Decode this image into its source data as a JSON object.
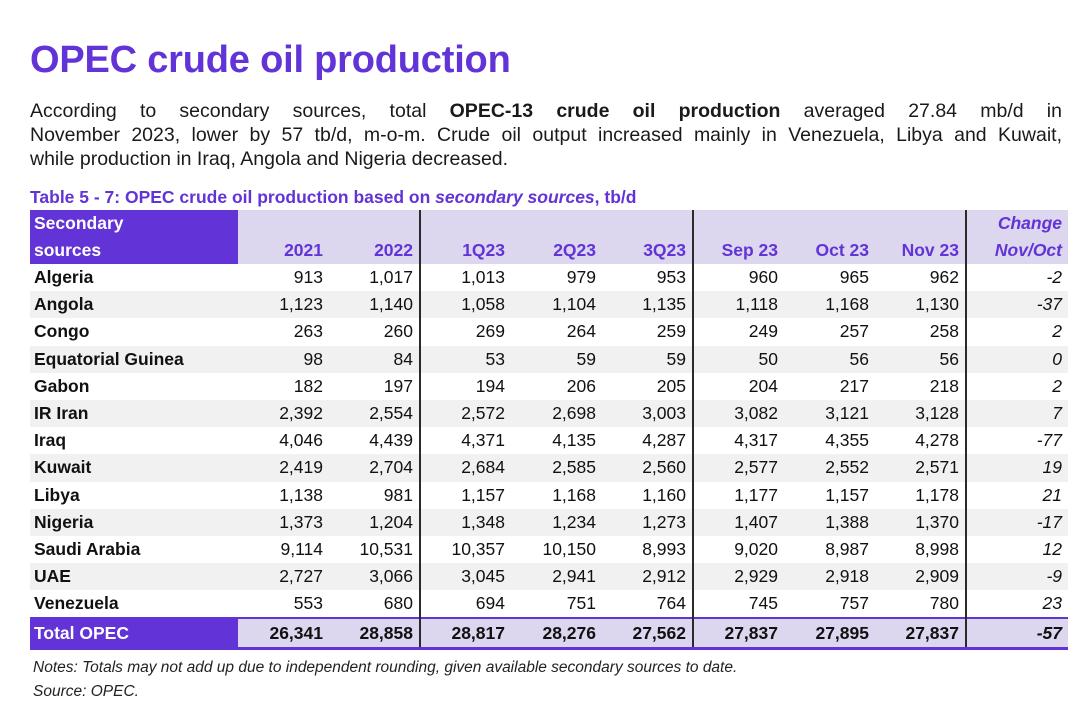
{
  "title": "OPEC crude oil production",
  "intro": {
    "line1_a": "According to secondary sources, total ",
    "line1_bold": "OPEC-13 crude oil production",
    "line1_b": " averaged 27.84 mb/d in",
    "line2": "November 2023, lower by 57 tb/d, m-o-m. Crude oil output increased mainly in Venezuela, Libya and Kuwait,",
    "line3": "while production in Iraq, Angola and Nigeria decreased."
  },
  "table_title": {
    "prefix": "Table 5 - 7: OPEC crude oil production based on ",
    "italic": "secondary sources",
    "suffix": ", tb/d"
  },
  "header": {
    "secondary_top": "Secondary",
    "secondary_bottom": "sources",
    "change_top": "Change",
    "change_bottom": "Nov/Oct",
    "columns": [
      "2021",
      "2022",
      "1Q23",
      "2Q23",
      "3Q23",
      "Sep 23",
      "Oct 23",
      "Nov 23"
    ]
  },
  "rows": [
    {
      "name": "Algeria",
      "values": [
        "913",
        "1,017",
        "1,013",
        "979",
        "953",
        "960",
        "965",
        "962"
      ],
      "change": "-2"
    },
    {
      "name": "Angola",
      "values": [
        "1,123",
        "1,140",
        "1,058",
        "1,104",
        "1,135",
        "1,118",
        "1,168",
        "1,130"
      ],
      "change": "-37"
    },
    {
      "name": "Congo",
      "values": [
        "263",
        "260",
        "269",
        "264",
        "259",
        "249",
        "257",
        "258"
      ],
      "change": "2"
    },
    {
      "name": "Equatorial Guinea",
      "values": [
        "98",
        "84",
        "53",
        "59",
        "59",
        "50",
        "56",
        "56"
      ],
      "change": "0"
    },
    {
      "name": "Gabon",
      "values": [
        "182",
        "197",
        "194",
        "206",
        "205",
        "204",
        "217",
        "218"
      ],
      "change": "2"
    },
    {
      "name": "IR Iran",
      "values": [
        "2,392",
        "2,554",
        "2,572",
        "2,698",
        "3,003",
        "3,082",
        "3,121",
        "3,128"
      ],
      "change": "7"
    },
    {
      "name": "Iraq",
      "values": [
        "4,046",
        "4,439",
        "4,371",
        "4,135",
        "4,287",
        "4,317",
        "4,355",
        "4,278"
      ],
      "change": "-77"
    },
    {
      "name": "Kuwait",
      "values": [
        "2,419",
        "2,704",
        "2,684",
        "2,585",
        "2,560",
        "2,577",
        "2,552",
        "2,571"
      ],
      "change": "19"
    },
    {
      "name": "Libya",
      "values": [
        "1,138",
        "981",
        "1,157",
        "1,168",
        "1,160",
        "1,177",
        "1,157",
        "1,178"
      ],
      "change": "21"
    },
    {
      "name": "Nigeria",
      "values": [
        "1,373",
        "1,204",
        "1,348",
        "1,234",
        "1,273",
        "1,407",
        "1,388",
        "1,370"
      ],
      "change": "-17"
    },
    {
      "name": "Saudi Arabia",
      "values": [
        "9,114",
        "10,531",
        "10,357",
        "10,150",
        "8,993",
        "9,020",
        "8,987",
        "8,998"
      ],
      "change": "12"
    },
    {
      "name": "UAE",
      "values": [
        "2,727",
        "3,066",
        "3,045",
        "2,941",
        "2,912",
        "2,929",
        "2,918",
        "2,909"
      ],
      "change": "-9"
    },
    {
      "name": "Venezuela",
      "values": [
        "553",
        "680",
        "694",
        "751",
        "764",
        "745",
        "757",
        "780"
      ],
      "change": "23"
    }
  ],
  "total": {
    "name": "Total  OPEC",
    "values": [
      "26,341",
      "28,858",
      "28,817",
      "28,276",
      "27,562",
      "27,837",
      "27,895",
      "27,837"
    ],
    "change": "-57"
  },
  "notes": "Notes: Totals may not add up due to independent rounding, given available secondary sources to date.",
  "source": "Source: OPEC.",
  "colors": {
    "accent": "#6233d6",
    "header_fill": "#dcd6ee",
    "row_stripe": "#f1f1f1"
  }
}
